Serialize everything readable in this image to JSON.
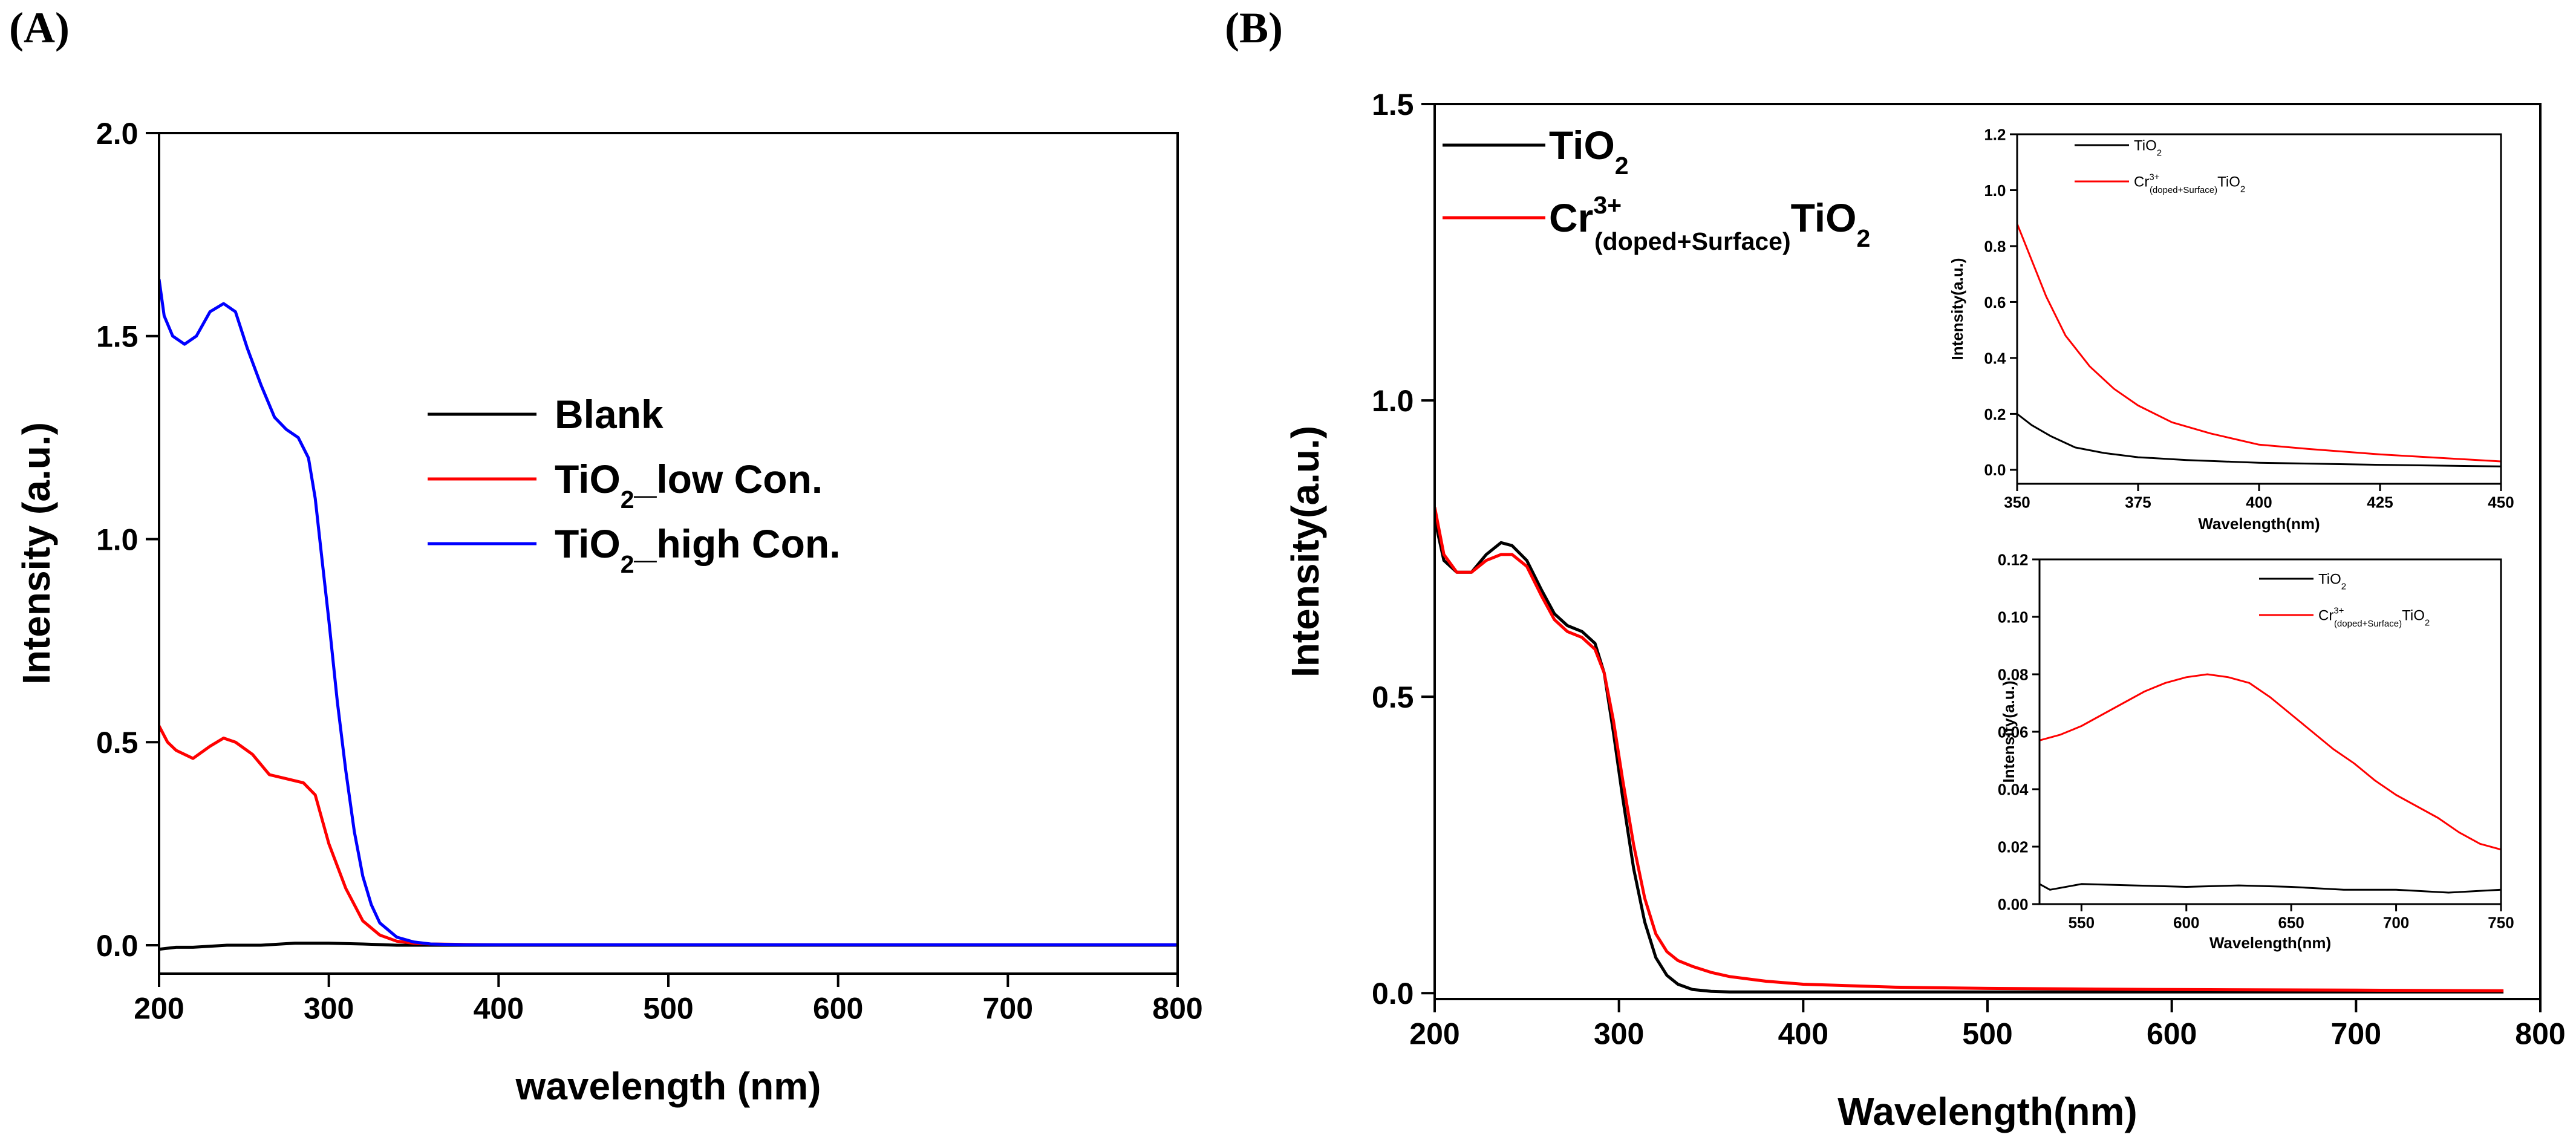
{
  "figure": {
    "panel_a_label": "(A)",
    "panel_b_label": "(B)"
  },
  "chart_data": [
    {
      "id": "A",
      "type": "line",
      "title": "",
      "xlabel": "wavelength (nm)",
      "ylabel": "Intensity (a.u.)",
      "xlim": [
        200,
        800
      ],
      "ylim": [
        -0.07,
        2.0
      ],
      "xticks": [
        200,
        300,
        400,
        500,
        600,
        700,
        800
      ],
      "yticks": [
        0.0,
        0.5,
        1.0,
        1.5,
        2.0
      ],
      "xtick_labels": [
        "200",
        "300",
        "400",
        "500",
        "600",
        "700",
        "800"
      ],
      "ytick_labels": [
        "0.0",
        "0.5",
        "1.0",
        "1.5",
        "2.0"
      ],
      "legend_position": "center-right",
      "series": [
        {
          "name": "Blank",
          "legend_main": "Blank",
          "legend_sub": "",
          "legend_tail": "",
          "color": "#000000",
          "x": [
            200,
            210,
            220,
            240,
            260,
            280,
            300,
            320,
            340,
            400,
            500,
            600,
            700,
            800
          ],
          "y": [
            -0.01,
            -0.005,
            -0.005,
            0.0,
            0.0,
            0.005,
            0.005,
            0.003,
            0.0,
            0.0,
            0.0,
            0.0,
            0.0,
            0.0
          ]
        },
        {
          "name": "TiO2_low Con.",
          "legend_main": "TiO",
          "legend_sub": "2",
          "legend_tail": "_low Con.",
          "color": "#ff0000",
          "x": [
            200,
            205,
            210,
            220,
            230,
            238,
            245,
            255,
            265,
            275,
            285,
            292,
            300,
            310,
            320,
            330,
            340,
            350,
            360,
            380,
            400,
            500,
            600,
            700,
            800
          ],
          "y": [
            0.54,
            0.5,
            0.48,
            0.46,
            0.49,
            0.51,
            0.5,
            0.47,
            0.42,
            0.41,
            0.4,
            0.37,
            0.25,
            0.14,
            0.06,
            0.025,
            0.01,
            0.005,
            0.003,
            0.002,
            0.001,
            0.001,
            0.001,
            0.001,
            0.001
          ]
        },
        {
          "name": "TiO2_high Con.",
          "legend_main": "TiO",
          "legend_sub": "2",
          "legend_tail": "_high Con.",
          "color": "#0000ff",
          "x": [
            200,
            203,
            208,
            215,
            222,
            230,
            238,
            245,
            252,
            260,
            268,
            275,
            282,
            288,
            292,
            296,
            300,
            305,
            310,
            315,
            320,
            325,
            330,
            340,
            350,
            360,
            380,
            400,
            500,
            600,
            700,
            800
          ],
          "y": [
            1.64,
            1.55,
            1.5,
            1.48,
            1.5,
            1.56,
            1.58,
            1.56,
            1.47,
            1.38,
            1.3,
            1.27,
            1.25,
            1.2,
            1.1,
            0.95,
            0.8,
            0.6,
            0.43,
            0.28,
            0.17,
            0.1,
            0.055,
            0.02,
            0.008,
            0.003,
            0.001,
            0.001,
            0.001,
            0.001,
            0.001,
            0.001
          ]
        }
      ]
    },
    {
      "id": "B",
      "type": "line",
      "title": "",
      "xlabel": "Wavelength(nm)",
      "ylabel": "Intensity(a.u.)",
      "xlim": [
        200,
        800
      ],
      "ylim": [
        -0.01,
        1.5
      ],
      "xticks": [
        200,
        300,
        400,
        500,
        600,
        700,
        800
      ],
      "yticks": [
        0.0,
        0.5,
        1.0,
        1.5
      ],
      "xtick_labels": [
        "200",
        "300",
        "400",
        "500",
        "600",
        "700",
        "800"
      ],
      "ytick_labels": [
        "0.0",
        "0.5",
        "1.0",
        "1.5"
      ],
      "legend_position": "top-left",
      "series": [
        {
          "name": "TiO2",
          "legend_main": "TiO",
          "legend_sub": "2",
          "legend_sup": "",
          "legend_sub2": "",
          "legend_tail": "",
          "color": "#000000",
          "x": [
            200,
            205,
            212,
            220,
            228,
            236,
            242,
            250,
            258,
            265,
            272,
            280,
            287,
            292,
            297,
            302,
            308,
            314,
            320,
            326,
            332,
            340,
            350,
            360,
            380,
            400,
            500,
            600,
            700,
            780
          ],
          "y": [
            0.8,
            0.73,
            0.71,
            0.71,
            0.74,
            0.76,
            0.755,
            0.73,
            0.68,
            0.64,
            0.62,
            0.61,
            0.59,
            0.54,
            0.44,
            0.33,
            0.21,
            0.12,
            0.06,
            0.03,
            0.015,
            0.006,
            0.003,
            0.002,
            0.002,
            0.002,
            0.002,
            0.002,
            0.002,
            0.002
          ]
        },
        {
          "name": "Cr3+(doped+Surface)TiO2",
          "legend_main": "Cr",
          "legend_sup": "3+",
          "legend_sub2": "(doped+Surface)",
          "legend_tail": "TiO",
          "legend_sub": "2",
          "color": "#ff0000",
          "x": [
            200,
            205,
            212,
            220,
            228,
            236,
            242,
            250,
            258,
            265,
            272,
            280,
            287,
            292,
            297,
            302,
            308,
            314,
            320,
            326,
            332,
            340,
            350,
            360,
            380,
            400,
            450,
            500,
            600,
            700,
            780
          ],
          "y": [
            0.82,
            0.74,
            0.71,
            0.71,
            0.73,
            0.74,
            0.74,
            0.72,
            0.67,
            0.63,
            0.61,
            0.6,
            0.58,
            0.54,
            0.46,
            0.36,
            0.25,
            0.16,
            0.1,
            0.07,
            0.055,
            0.045,
            0.035,
            0.028,
            0.02,
            0.015,
            0.01,
            0.008,
            0.006,
            0.005,
            0.004
          ]
        }
      ],
      "insets": [
        {
          "id": "B-inset-top",
          "type": "line",
          "xlabel": "Wavelength(nm)",
          "ylabel": "Intensity(a.u.)",
          "xlim": [
            350,
            450
          ],
          "ylim": [
            -0.05,
            1.2
          ],
          "xticks": [
            350,
            375,
            400,
            425,
            450
          ],
          "yticks": [
            0.0,
            0.2,
            0.4,
            0.6,
            0.8,
            1.0,
            1.2
          ],
          "xtick_labels": [
            "350",
            "375",
            "400",
            "425",
            "450"
          ],
          "ytick_labels": [
            "0.0",
            "0.2",
            "0.4",
            "0.6",
            "0.8",
            "1.0",
            "1.2"
          ],
          "legend_position": "top-right",
          "series": [
            {
              "name": "TiO2",
              "legend_main": "TiO",
              "legend_sub": "2",
              "color": "#000000",
              "x": [
                350,
                353,
                357,
                362,
                368,
                375,
                385,
                400,
                425,
                450
              ],
              "y": [
                0.2,
                0.16,
                0.12,
                0.08,
                0.06,
                0.045,
                0.035,
                0.025,
                0.018,
                0.012
              ]
            },
            {
              "name": "Cr3+(doped+Surface)TiO2",
              "legend_main": "Cr",
              "legend_sup": "3+",
              "legend_sub2": "(doped+Surface)",
              "legend_tail": "TiO",
              "legend_sub": "2",
              "color": "#ff0000",
              "x": [
                350,
                353,
                356,
                360,
                365,
                370,
                375,
                382,
                390,
                400,
                410,
                425,
                440,
                450
              ],
              "y": [
                0.88,
                0.75,
                0.62,
                0.48,
                0.37,
                0.29,
                0.23,
                0.17,
                0.13,
                0.09,
                0.075,
                0.055,
                0.04,
                0.03
              ]
            }
          ]
        },
        {
          "id": "B-inset-bottom",
          "type": "line",
          "xlabel": "Wavelength(nm)",
          "ylabel": "Intensity(a.u.)",
          "xlim": [
            530,
            750
          ],
          "ylim": [
            0.0,
            0.12
          ],
          "xticks": [
            550,
            600,
            650,
            700,
            750
          ],
          "yticks": [
            0.0,
            0.02,
            0.04,
            0.06,
            0.08,
            0.1,
            0.12
          ],
          "xtick_labels": [
            "550",
            "600",
            "650",
            "700",
            "750"
          ],
          "ytick_labels": [
            "0.00",
            "0.02",
            "0.04",
            "0.06",
            "0.08",
            "0.10",
            "0.12"
          ],
          "legend_position": "top-right",
          "series": [
            {
              "name": "TiO2",
              "legend_main": "TiO",
              "legend_sub": "2",
              "color": "#000000",
              "x": [
                530,
                535,
                550,
                575,
                600,
                625,
                650,
                675,
                700,
                725,
                750
              ],
              "y": [
                0.007,
                0.005,
                0.007,
                0.0065,
                0.006,
                0.0065,
                0.006,
                0.005,
                0.005,
                0.004,
                0.005
              ]
            },
            {
              "name": "Cr3+(doped+Surface)TiO2",
              "legend_main": "Cr",
              "legend_sup": "3+",
              "legend_sub2": "(doped+Surface)",
              "legend_tail": "TiO",
              "legend_sub": "2",
              "color": "#ff0000",
              "x": [
                530,
                540,
                550,
                560,
                570,
                580,
                590,
                600,
                610,
                620,
                630,
                640,
                650,
                660,
                670,
                680,
                690,
                700,
                710,
                720,
                730,
                740,
                750
              ],
              "y": [
                0.057,
                0.059,
                0.062,
                0.066,
                0.07,
                0.074,
                0.077,
                0.079,
                0.08,
                0.079,
                0.077,
                0.072,
                0.066,
                0.06,
                0.054,
                0.049,
                0.043,
                0.038,
                0.034,
                0.03,
                0.025,
                0.021,
                0.019
              ]
            }
          ]
        }
      ]
    }
  ]
}
